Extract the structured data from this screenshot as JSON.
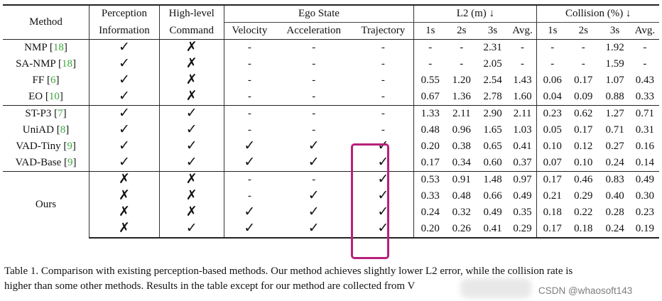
{
  "headers": {
    "method": "Method",
    "perception": [
      "Perception",
      "Information"
    ],
    "command": [
      "High-level",
      "Command"
    ],
    "ego_state": "Ego State",
    "ego_cols": [
      "Velocity",
      "Acceleration",
      "Trajectory"
    ],
    "l2": "L2 (m) ↓",
    "collision": "Collision (%) ↓",
    "time_cols": [
      "1s",
      "2s",
      "3s",
      "Avg."
    ]
  },
  "groups": [
    [
      {
        "name": "NMP",
        "ref": "18",
        "p": "✓",
        "c": "✗",
        "v": "-",
        "a": "-",
        "t": "-",
        "l2": [
          "-",
          "-",
          "2.31",
          "-"
        ],
        "col": [
          "-",
          "-",
          "1.92",
          "-"
        ]
      },
      {
        "name": "SA-NMP",
        "ref": "18",
        "p": "✓",
        "c": "✗",
        "v": "-",
        "a": "-",
        "t": "-",
        "l2": [
          "-",
          "-",
          "2.05",
          "-"
        ],
        "col": [
          "-",
          "-",
          "1.59",
          "-"
        ]
      },
      {
        "name": "FF",
        "ref": "6",
        "p": "✓",
        "c": "✗",
        "v": "-",
        "a": "-",
        "t": "-",
        "l2": [
          "0.55",
          "1.20",
          "2.54",
          "1.43"
        ],
        "col": [
          "0.06",
          "0.17",
          "1.07",
          "0.43"
        ]
      },
      {
        "name": "EO",
        "ref": "10",
        "p": "✓",
        "c": "✗",
        "v": "-",
        "a": "-",
        "t": "-",
        "l2": [
          "0.67",
          "1.36",
          "2.78",
          "1.60"
        ],
        "col": [
          "0.04",
          "0.09",
          "0.88",
          "0.33"
        ]
      }
    ],
    [
      {
        "name": "ST-P3",
        "ref": "7",
        "p": "✓",
        "c": "✓",
        "v": "-",
        "a": "-",
        "t": "-",
        "l2": [
          "1.33",
          "2.11",
          "2.90",
          "2.11"
        ],
        "col": [
          "0.23",
          "0.62",
          "1.27",
          "0.71"
        ]
      },
      {
        "name": "UniAD",
        "ref": "8",
        "p": "✓",
        "c": "✓",
        "v": "-",
        "a": "-",
        "t": "-",
        "l2": [
          "0.48",
          "0.96",
          "1.65",
          "1.03"
        ],
        "col": [
          "0.05",
          "0.17",
          "0.71",
          "0.31"
        ]
      },
      {
        "name": "VAD-Tiny",
        "ref": "9",
        "p": "✓",
        "c": "✓",
        "v": "✓",
        "a": "✓",
        "t": "✓",
        "l2": [
          "0.20",
          "0.38",
          "0.65",
          "0.41"
        ],
        "col": [
          "0.10",
          "0.12",
          "0.27",
          "0.16"
        ]
      },
      {
        "name": "VAD-Base",
        "ref": "9",
        "p": "✓",
        "c": "✓",
        "v": "✓",
        "a": "✓",
        "t": "✓",
        "l2": [
          "0.17",
          "0.34",
          "0.60",
          "0.37"
        ],
        "col": [
          "0.07",
          "0.10",
          "0.24",
          "0.14"
        ]
      }
    ]
  ],
  "ours": {
    "name": "Ours",
    "rows": [
      {
        "p": "✗",
        "c": "✗",
        "v": "-",
        "a": "-",
        "t": "✓",
        "l2": [
          "0.53",
          "0.91",
          "1.48",
          "0.97"
        ],
        "col": [
          "0.17",
          "0.46",
          "0.83",
          "0.49"
        ]
      },
      {
        "p": "✗",
        "c": "✗",
        "v": "-",
        "a": "✓",
        "t": "✓",
        "l2": [
          "0.33",
          "0.48",
          "0.66",
          "0.49"
        ],
        "col": [
          "0.21",
          "0.29",
          "0.40",
          "0.30"
        ]
      },
      {
        "p": "✗",
        "c": "✗",
        "v": "✓",
        "a": "✓",
        "t": "✓",
        "l2": [
          "0.24",
          "0.32",
          "0.49",
          "0.35"
        ],
        "col": [
          "0.18",
          "0.22",
          "0.28",
          "0.23"
        ]
      },
      {
        "p": "✗",
        "c": "✓",
        "v": "✓",
        "a": "✓",
        "t": "✓",
        "l2": [
          "0.20",
          "0.26",
          "0.41",
          "0.29"
        ],
        "col": [
          "0.17",
          "0.18",
          "0.24",
          "0.19"
        ]
      }
    ]
  },
  "caption": {
    "line1": "Table 1.  Comparison with existing perception-based methods.  Our method achieves slightly lower L2 error, while the collision rate is",
    "line2": "higher than some other methods. Results in the table except for our method are collected from V"
  },
  "watermark": "CSDN @whaosoft143",
  "highlight_color": "#b8207a",
  "ref_color": "#3aa63a"
}
